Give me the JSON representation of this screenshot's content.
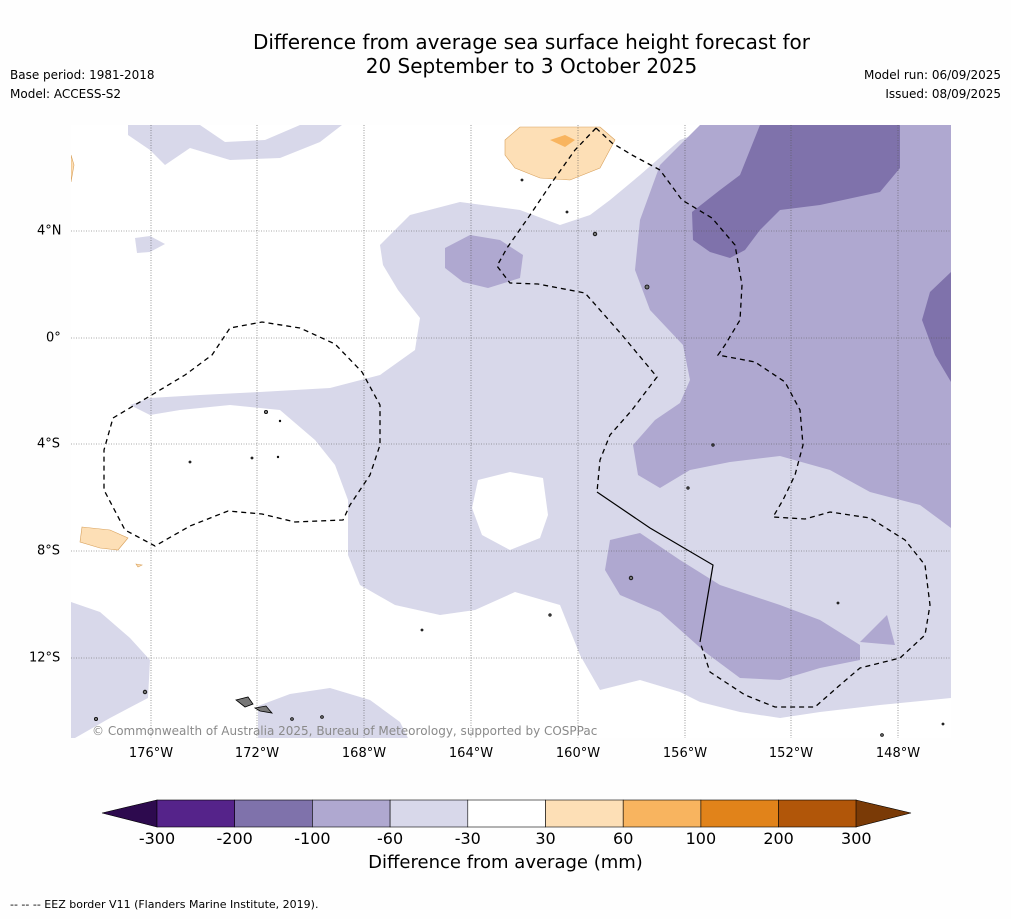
{
  "title": {
    "line1": "Difference from average sea surface height forecast for",
    "line2": "20 September to 3 October 2025"
  },
  "meta_left": {
    "base_period": "Base period: 1981-2018",
    "model": "Model: ACCESS-S2"
  },
  "meta_right": {
    "model_run": "Model run: 06/09/2025",
    "issued": "Issued: 08/09/2025"
  },
  "copyright": "© Commonwealth of Australia 2025, Bureau of Meteorology, supported by COSPPac",
  "lat_labels": [
    "4°N",
    "0°",
    "4°S",
    "8°S",
    "12°S"
  ],
  "lon_labels": [
    "176°W",
    "172°W",
    "168°W",
    "164°W",
    "160°W",
    "156°W",
    "152°W",
    "148°W"
  ],
  "colorbar": {
    "title": "Difference from average (mm)",
    "tick_labels": [
      "-300",
      "-200",
      "-100",
      "-60",
      "-30",
      "30",
      "60",
      "100",
      "200",
      "300"
    ],
    "colors": [
      "#2d0a4e",
      "#55238a",
      "#7f72ab",
      "#afa8d0",
      "#d8d8ea",
      "#ffffff",
      "#fddfb6",
      "#f8b45f",
      "#e1831a",
      "#b15609",
      "#7a3a06"
    ]
  },
  "legend_footer": "--  --  -- EEZ border V11 (Flanders Marine Institute, 2019)."
}
